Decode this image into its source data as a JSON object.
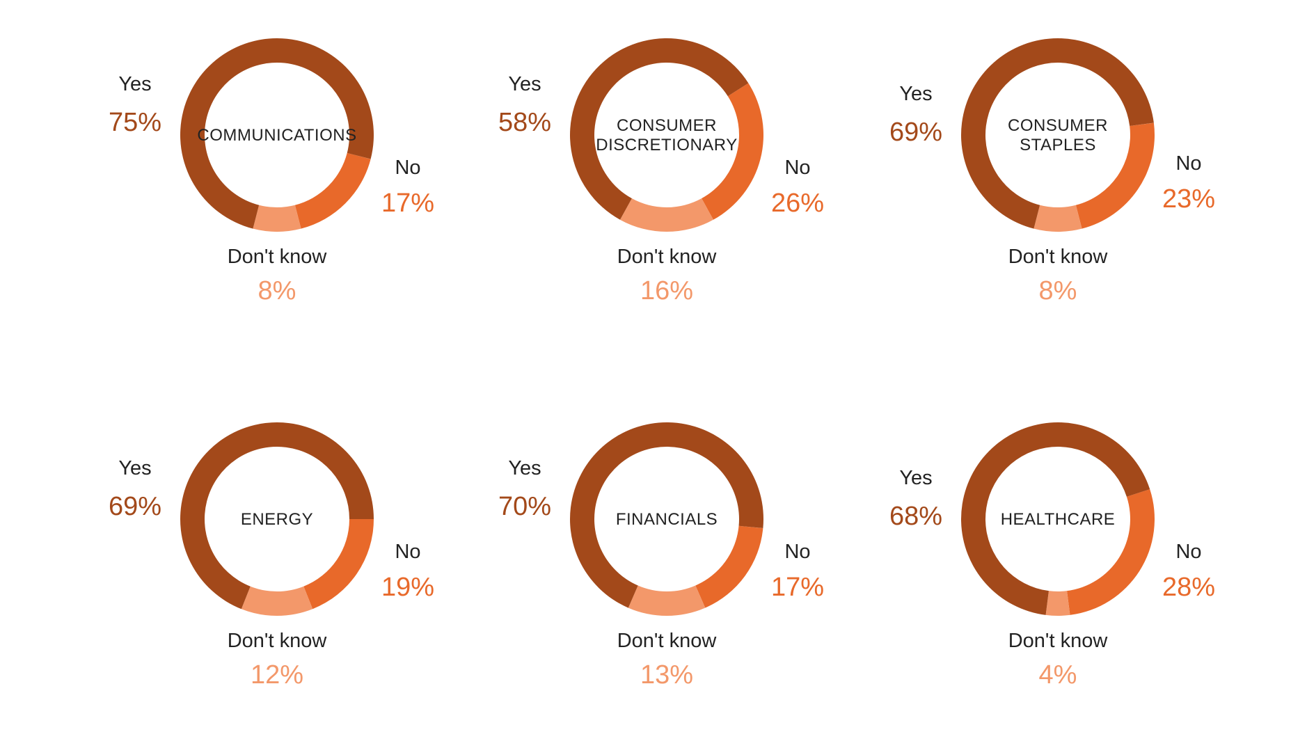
{
  "colors": {
    "yes": "#A3491A",
    "no": "#E8692A",
    "dont_know": "#F3986A",
    "text": "#222222"
  },
  "chart_data": [
    {
      "type": "pie",
      "title": "COMMUNICATIONS",
      "categories": [
        "Yes",
        "No",
        "Don't know"
      ],
      "values": [
        75,
        17,
        8
      ],
      "value_labels": [
        "75%",
        "17%",
        "8%"
      ]
    },
    {
      "type": "pie",
      "title": "CONSUMER DISCRETIONARY",
      "categories": [
        "Yes",
        "No",
        "Don't know"
      ],
      "values": [
        58,
        26,
        16
      ],
      "value_labels": [
        "58%",
        "26%",
        "16%"
      ]
    },
    {
      "type": "pie",
      "title": "CONSUMER STAPLES",
      "categories": [
        "Yes",
        "No",
        "Don't know"
      ],
      "values": [
        69,
        23,
        8
      ],
      "value_labels": [
        "69%",
        "23%",
        "8%"
      ]
    },
    {
      "type": "pie",
      "title": "ENERGY",
      "categories": [
        "Yes",
        "No",
        "Don't know"
      ],
      "values": [
        69,
        19,
        12
      ],
      "value_labels": [
        "69%",
        "19%",
        "12%"
      ]
    },
    {
      "type": "pie",
      "title": "FINANCIALS",
      "categories": [
        "Yes",
        "No",
        "Don't know"
      ],
      "values": [
        70,
        17,
        13
      ],
      "value_labels": [
        "70%",
        "17%",
        "13%"
      ]
    },
    {
      "type": "pie",
      "title": "HEALTHCARE",
      "categories": [
        "Yes",
        "No",
        "Don't know"
      ],
      "values": [
        68,
        28,
        4
      ],
      "value_labels": [
        "68%",
        "28%",
        "4%"
      ]
    }
  ]
}
